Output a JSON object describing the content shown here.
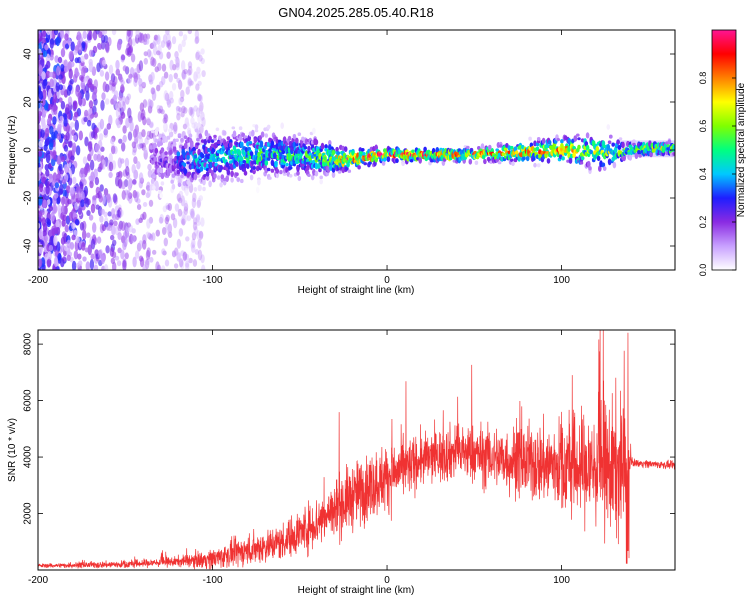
{
  "title": "GN04.2025.285.05.40.R18",
  "colors": {
    "snr_line": "#f03232",
    "frame": "#000000",
    "background": "#ffffff"
  },
  "chart_data": [
    {
      "type": "heatmap",
      "name": "spectrogram",
      "xlabel": "Height of straight line (km)",
      "ylabel": "Frequency (Hz)",
      "xlim": [
        -200,
        165
      ],
      "ylim": [
        -50,
        50
      ],
      "xticks": [
        -200,
        -100,
        0,
        100
      ],
      "yticks": [
        -40,
        -20,
        0,
        20,
        40
      ],
      "colorbar": {
        "label": "Normalized spectral amplitude",
        "range": [
          0,
          1
        ],
        "ticks": [
          "0.0",
          "0.2",
          "0.4",
          "0.6",
          "0.8"
        ],
        "colormap": [
          "#ffffff",
          "#c8a0ff",
          "#8a2be2",
          "#1e1eff",
          "#00c8ff",
          "#00ff80",
          "#80ff00",
          "#ffff00",
          "#ff8000",
          "#ff0000",
          "#ff1493"
        ]
      },
      "ridge": [
        {
          "x": -120,
          "freq": -4,
          "width": 12,
          "amp": 0.35
        },
        {
          "x": -100,
          "freq": -3,
          "width": 11,
          "amp": 0.45
        },
        {
          "x": -80,
          "freq": -2,
          "width": 10,
          "amp": 0.5
        },
        {
          "x": -60,
          "freq": -2,
          "width": 9,
          "amp": 0.5
        },
        {
          "x": -40,
          "freq": -3,
          "width": 8,
          "amp": 0.55
        },
        {
          "x": -25,
          "freq": -4,
          "width": 5,
          "amp": 0.8
        },
        {
          "x": 0,
          "freq": -2,
          "width": 3,
          "amp": 0.9
        },
        {
          "x": 25,
          "freq": -2,
          "width": 3,
          "amp": 0.85
        },
        {
          "x": 50,
          "freq": -2,
          "width": 3,
          "amp": 0.8
        },
        {
          "x": 75,
          "freq": -1,
          "width": 4,
          "amp": 0.8
        },
        {
          "x": 100,
          "freq": 0,
          "width": 6,
          "amp": 0.75
        },
        {
          "x": 125,
          "freq": -1,
          "width": 8,
          "amp": 0.6
        },
        {
          "x": 140,
          "freq": 0,
          "width": 3,
          "amp": 0.65
        },
        {
          "x": 165,
          "freq": 1,
          "width": 3,
          "amp": 0.65
        }
      ]
    },
    {
      "type": "line",
      "name": "snr",
      "xlabel": "Height of straight line (km)",
      "ylabel": "SNR (10 * v/v)",
      "xlim": [
        -200,
        165
      ],
      "ylim": [
        0,
        8500
      ],
      "xticks": [
        -200,
        -100,
        0,
        100
      ],
      "yticks": [
        2000,
        4000,
        6000,
        8000
      ],
      "envelope": [
        {
          "x": -200,
          "base": 150,
          "spread": 80
        },
        {
          "x": -150,
          "base": 200,
          "spread": 150
        },
        {
          "x": -120,
          "base": 300,
          "spread": 200
        },
        {
          "x": -100,
          "base": 400,
          "spread": 400
        },
        {
          "x": -80,
          "base": 700,
          "spread": 600
        },
        {
          "x": -60,
          "base": 1000,
          "spread": 700
        },
        {
          "x": -40,
          "base": 1700,
          "spread": 1000
        },
        {
          "x": -20,
          "base": 2600,
          "spread": 1300
        },
        {
          "x": 0,
          "base": 3300,
          "spread": 1300
        },
        {
          "x": 20,
          "base": 3900,
          "spread": 1000
        },
        {
          "x": 40,
          "base": 4200,
          "spread": 1100
        },
        {
          "x": 60,
          "base": 4000,
          "spread": 1200
        },
        {
          "x": 80,
          "base": 3800,
          "spread": 1400
        },
        {
          "x": 100,
          "base": 3700,
          "spread": 1800
        },
        {
          "x": 120,
          "base": 3600,
          "spread": 2400
        },
        {
          "x": 135,
          "base": 3600,
          "spread": 2800
        },
        {
          "x": 140,
          "base": 3800,
          "spread": 150
        },
        {
          "x": 165,
          "base": 3700,
          "spread": 150
        }
      ],
      "peak": {
        "x": 138,
        "value": 8400
      }
    }
  ]
}
